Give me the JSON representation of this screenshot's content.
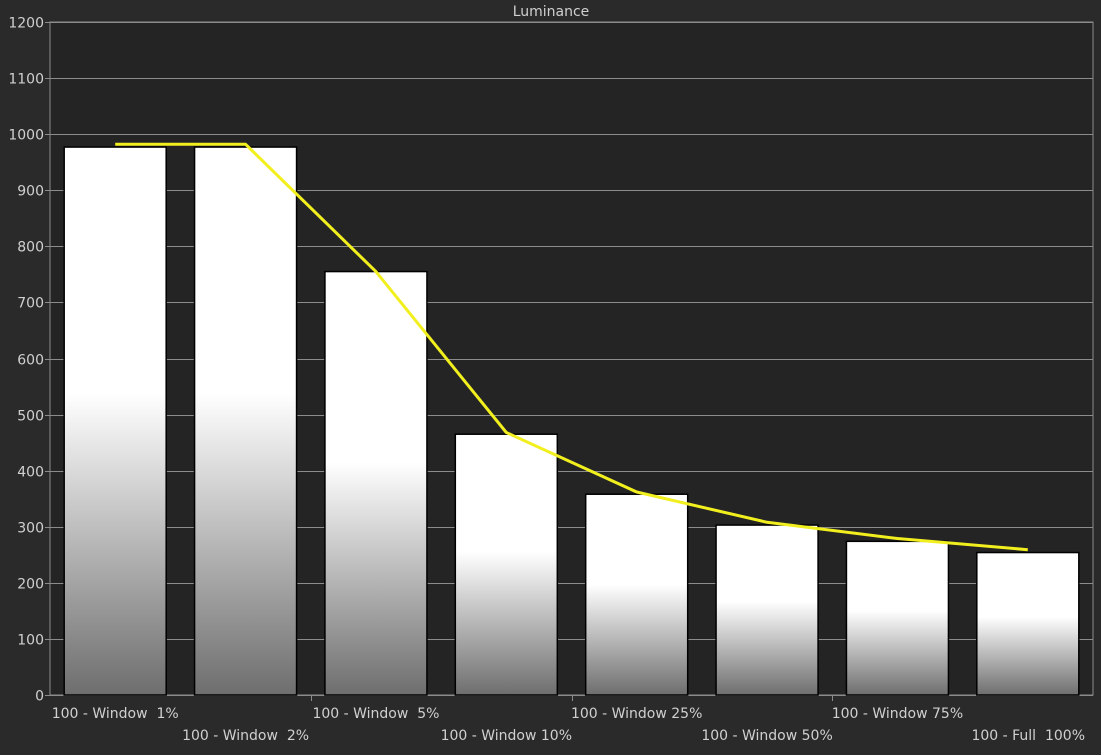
{
  "chart_data": {
    "type": "bar",
    "title": "Luminance",
    "xlabel": "",
    "ylabel": "",
    "ylim": [
      0,
      1200
    ],
    "yticks": [
      0,
      100,
      200,
      300,
      400,
      500,
      600,
      700,
      800,
      900,
      1000,
      1100,
      1200
    ],
    "grid": true,
    "legend": "none",
    "categories": [
      "100 - Window  1%",
      "100 - Window  2%",
      "100 - Window  5%",
      "100 - Window 10%",
      "100 - Window 25%",
      "100 - Window 50%",
      "100 - Window 75%",
      "100 - Full  100%"
    ],
    "series": [
      {
        "type": "bar",
        "values": [
          977,
          977,
          755,
          465,
          358,
          303,
          274,
          254
        ]
      },
      {
        "type": "line",
        "values": [
          982,
          982,
          755,
          468,
          362,
          308,
          279,
          259
        ]
      }
    ],
    "colors": {
      "background": "#2a2a2a",
      "plot_background": "#242424",
      "grid": "#8c8c8c",
      "text": "#d0d0d0",
      "line": "#f2ef1e",
      "bar_top": "#ffffff",
      "bar_bottom": "#6e6e6e",
      "bar_stroke": "#000000"
    }
  }
}
